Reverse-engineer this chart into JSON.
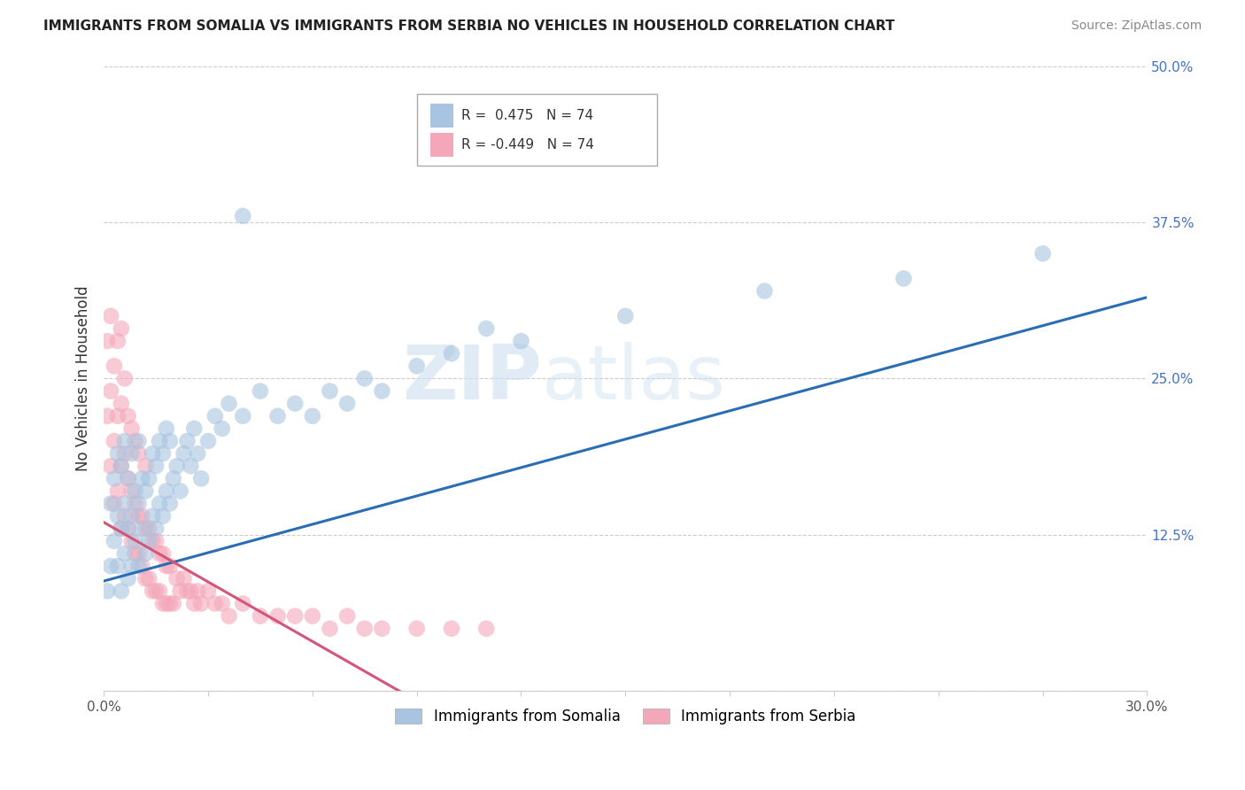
{
  "title": "IMMIGRANTS FROM SOMALIA VS IMMIGRANTS FROM SERBIA NO VEHICLES IN HOUSEHOLD CORRELATION CHART",
  "source": "Source: ZipAtlas.com",
  "ylabel": "No Vehicles in Household",
  "xlim": [
    0.0,
    0.3
  ],
  "ylim": [
    0.0,
    0.5
  ],
  "somalia_R": 0.475,
  "serbia_R": -0.449,
  "N": 74,
  "somalia_color": "#a8c4e0",
  "serbia_color": "#f4a7b9",
  "somalia_line_color": "#2a6db5",
  "serbia_line_color": "#d4547a",
  "watermark_zip": "ZIP",
  "watermark_atlas": "atlas",
  "legend_somalia": "Immigrants from Somalia",
  "legend_serbia": "Immigrants from Serbia",
  "somalia_scatter_x": [
    0.001,
    0.002,
    0.002,
    0.003,
    0.003,
    0.004,
    0.004,
    0.004,
    0.005,
    0.005,
    0.005,
    0.006,
    0.006,
    0.006,
    0.007,
    0.007,
    0.007,
    0.008,
    0.008,
    0.008,
    0.009,
    0.009,
    0.01,
    0.01,
    0.01,
    0.011,
    0.011,
    0.012,
    0.012,
    0.013,
    0.013,
    0.014,
    0.014,
    0.015,
    0.015,
    0.016,
    0.016,
    0.017,
    0.017,
    0.018,
    0.018,
    0.019,
    0.019,
    0.02,
    0.021,
    0.022,
    0.023,
    0.024,
    0.025,
    0.026,
    0.027,
    0.028,
    0.03,
    0.032,
    0.034,
    0.036,
    0.04,
    0.045,
    0.05,
    0.055,
    0.06,
    0.065,
    0.07,
    0.075,
    0.08,
    0.09,
    0.1,
    0.11,
    0.12,
    0.15,
    0.19,
    0.23,
    0.27,
    0.04
  ],
  "somalia_scatter_y": [
    0.08,
    0.1,
    0.15,
    0.12,
    0.17,
    0.1,
    0.14,
    0.19,
    0.08,
    0.13,
    0.18,
    0.11,
    0.15,
    0.2,
    0.09,
    0.13,
    0.17,
    0.1,
    0.14,
    0.19,
    0.12,
    0.16,
    0.1,
    0.15,
    0.2,
    0.13,
    0.17,
    0.11,
    0.16,
    0.12,
    0.17,
    0.14,
    0.19,
    0.13,
    0.18,
    0.15,
    0.2,
    0.14,
    0.19,
    0.16,
    0.21,
    0.15,
    0.2,
    0.17,
    0.18,
    0.16,
    0.19,
    0.2,
    0.18,
    0.21,
    0.19,
    0.17,
    0.2,
    0.22,
    0.21,
    0.23,
    0.22,
    0.24,
    0.22,
    0.23,
    0.22,
    0.24,
    0.23,
    0.25,
    0.24,
    0.26,
    0.27,
    0.29,
    0.28,
    0.3,
    0.32,
    0.33,
    0.35,
    0.38
  ],
  "serbia_scatter_x": [
    0.001,
    0.001,
    0.002,
    0.002,
    0.002,
    0.003,
    0.003,
    0.003,
    0.004,
    0.004,
    0.004,
    0.005,
    0.005,
    0.005,
    0.005,
    0.006,
    0.006,
    0.006,
    0.007,
    0.007,
    0.007,
    0.008,
    0.008,
    0.008,
    0.009,
    0.009,
    0.009,
    0.01,
    0.01,
    0.01,
    0.011,
    0.011,
    0.012,
    0.012,
    0.012,
    0.013,
    0.013,
    0.014,
    0.014,
    0.015,
    0.015,
    0.016,
    0.016,
    0.017,
    0.017,
    0.018,
    0.018,
    0.019,
    0.019,
    0.02,
    0.021,
    0.022,
    0.023,
    0.024,
    0.025,
    0.026,
    0.027,
    0.028,
    0.03,
    0.032,
    0.034,
    0.036,
    0.04,
    0.045,
    0.05,
    0.055,
    0.06,
    0.065,
    0.07,
    0.075,
    0.08,
    0.09,
    0.1,
    0.11
  ],
  "serbia_scatter_y": [
    0.22,
    0.28,
    0.18,
    0.24,
    0.3,
    0.15,
    0.2,
    0.26,
    0.16,
    0.22,
    0.28,
    0.13,
    0.18,
    0.23,
    0.29,
    0.14,
    0.19,
    0.25,
    0.13,
    0.17,
    0.22,
    0.12,
    0.16,
    0.21,
    0.11,
    0.15,
    0.2,
    0.11,
    0.14,
    0.19,
    0.1,
    0.14,
    0.09,
    0.13,
    0.18,
    0.09,
    0.13,
    0.08,
    0.12,
    0.08,
    0.12,
    0.08,
    0.11,
    0.07,
    0.11,
    0.07,
    0.1,
    0.07,
    0.1,
    0.07,
    0.09,
    0.08,
    0.09,
    0.08,
    0.08,
    0.07,
    0.08,
    0.07,
    0.08,
    0.07,
    0.07,
    0.06,
    0.07,
    0.06,
    0.06,
    0.06,
    0.06,
    0.05,
    0.06,
    0.05,
    0.05,
    0.05,
    0.05,
    0.05
  ],
  "somalia_line_x": [
    0.0,
    0.3
  ],
  "somalia_line_y": [
    0.088,
    0.315
  ],
  "serbia_line_x": [
    0.0,
    0.085
  ],
  "serbia_line_y": [
    0.135,
    0.0
  ]
}
